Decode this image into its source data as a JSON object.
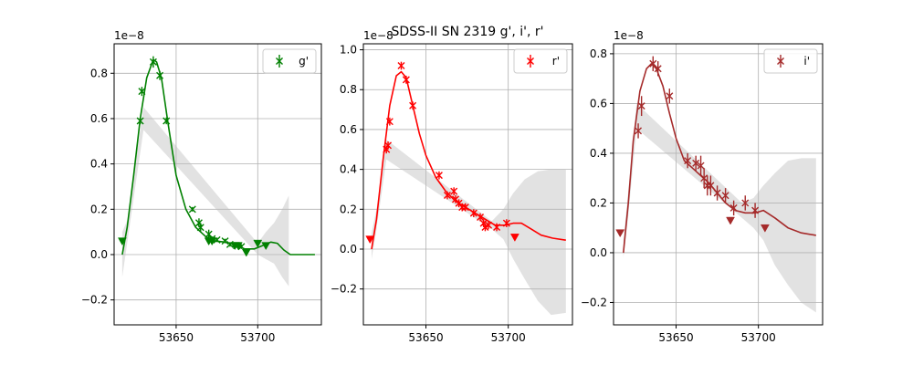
{
  "figure": {
    "title": "SDSS-II SN 2319  g', i', r'"
  },
  "chart_data": [
    {
      "type": "scatter",
      "band": "g'",
      "color": "#008000",
      "offset_label": "1e−8",
      "xlim": [
        53612,
        53739
      ],
      "ylim": [
        -0.31,
        0.93
      ],
      "xticks": [
        53650,
        53700
      ],
      "xtick_labels": [
        "53650",
        "53700"
      ],
      "yticks": [
        -0.2,
        0,
        0.2,
        0.4,
        0.6,
        0.8
      ],
      "ytick_labels": [
        "−0.2",
        "0.0",
        "0.2",
        "0.4",
        "0.6",
        "0.8"
      ],
      "grid": true,
      "legend": {
        "label": "g'",
        "position": "top-right"
      },
      "model_curve": {
        "x": [
          53617,
          53620,
          53624,
          53628,
          53632,
          53636,
          53638,
          53641,
          53645,
          53650,
          53656,
          53662,
          53668,
          53674,
          53680,
          53686,
          53692,
          53698,
          53703,
          53708,
          53712,
          53716,
          53720,
          53725,
          53730,
          53735
        ],
        "y": [
          0.0,
          0.12,
          0.35,
          0.6,
          0.78,
          0.86,
          0.85,
          0.78,
          0.58,
          0.35,
          0.2,
          0.12,
          0.08,
          0.06,
          0.055,
          0.045,
          0.025,
          0.025,
          0.04,
          0.055,
          0.05,
          0.02,
          0.0,
          0.0,
          0.0,
          0.0
        ]
      },
      "band_region": {
        "x": [
          53617,
          53620,
          53625,
          53630,
          53700,
          53705,
          53710,
          53715,
          53719
        ],
        "upper": [
          0.1,
          0.15,
          0.4,
          0.65,
          0.05,
          0.1,
          0.14,
          0.2,
          0.26
        ],
        "lower": [
          -0.1,
          0.05,
          0.3,
          0.55,
          0.0,
          -0.02,
          -0.04,
          -0.1,
          -0.14
        ]
      },
      "detections": {
        "x": [
          53628,
          53629,
          53636,
          53640,
          53644,
          53660,
          53664,
          53665,
          53670,
          53672,
          53675,
          53680,
          53683,
          53687,
          53690
        ],
        "y": [
          0.59,
          0.72,
          0.85,
          0.79,
          0.59,
          0.2,
          0.14,
          0.12,
          0.09,
          0.07,
          0.065,
          0.06,
          0.045,
          0.04,
          0.035
        ],
        "err": [
          0.015,
          0.02,
          0.025,
          0.02,
          0.015,
          0.01,
          0.02,
          0.02,
          0.02,
          0.01,
          0.01,
          0.01,
          0.01,
          0.01,
          0.01
        ]
      },
      "upper_limits": {
        "x": [
          53617,
          53670,
          53672,
          53686,
          53688,
          53693,
          53700,
          53705
        ],
        "y": [
          0.06,
          0.06,
          0.06,
          0.04,
          0.04,
          0.01,
          0.05,
          0.04
        ]
      }
    },
    {
      "type": "scatter",
      "band": "r'",
      "color": "#ff0000",
      "offset_label": "1e−8",
      "xlim": [
        53612,
        53739
      ],
      "ylim": [
        -0.38,
        1.03
      ],
      "xticks": [
        53650,
        53700
      ],
      "xtick_labels": [
        "53650",
        "53700"
      ],
      "yticks": [
        -0.2,
        0,
        0.2,
        0.4,
        0.6,
        0.8,
        1.0
      ],
      "ytick_labels": [
        "−0.2",
        "0.0",
        "0.2",
        "0.4",
        "0.6",
        "0.8",
        "1.0"
      ],
      "grid": true,
      "legend": {
        "label": "r'",
        "position": "top-right"
      },
      "model_curve": {
        "x": [
          53617,
          53620,
          53624,
          53628,
          53632,
          53635,
          53638,
          53642,
          53646,
          53650,
          53656,
          53662,
          53668,
          53674,
          53680,
          53686,
          53692,
          53698,
          53703,
          53708,
          53714,
          53720,
          53727,
          53735
        ],
        "y": [
          0.0,
          0.15,
          0.45,
          0.72,
          0.87,
          0.89,
          0.86,
          0.72,
          0.58,
          0.47,
          0.36,
          0.29,
          0.24,
          0.21,
          0.18,
          0.15,
          0.12,
          0.12,
          0.13,
          0.13,
          0.1,
          0.07,
          0.055,
          0.045
        ]
      },
      "band_region": {
        "x": [
          53617,
          53620,
          53626,
          53690,
          53697,
          53703,
          53710,
          53718,
          53726,
          53735
        ],
        "upper": [
          0.08,
          0.2,
          0.55,
          0.14,
          0.2,
          0.28,
          0.35,
          0.39,
          0.4,
          0.4
        ],
        "lower": [
          -0.05,
          0.1,
          0.45,
          0.1,
          0.05,
          -0.05,
          -0.15,
          -0.26,
          -0.33,
          -0.32
        ]
      },
      "detections": {
        "x": [
          53626,
          53627,
          53628,
          53635,
          53638,
          53642,
          53658,
          53663,
          53667,
          53668,
          53670,
          53672,
          53674,
          53679,
          53683,
          53685,
          53686,
          53688,
          53693,
          53699
        ],
        "y": [
          0.5,
          0.52,
          0.64,
          0.92,
          0.85,
          0.72,
          0.37,
          0.27,
          0.29,
          0.25,
          0.23,
          0.21,
          0.21,
          0.18,
          0.16,
          0.13,
          0.11,
          0.12,
          0.11,
          0.13
        ],
        "err": [
          0.02,
          0.02,
          0.02,
          0.02,
          0.02,
          0.02,
          0.02,
          0.02,
          0.02,
          0.02,
          0.02,
          0.02,
          0.02,
          0.02,
          0.02,
          0.02,
          0.02,
          0.02,
          0.02,
          0.02
        ]
      },
      "upper_limits": {
        "x": [
          53616,
          53704
        ],
        "y": [
          0.05,
          0.06
        ]
      }
    },
    {
      "type": "scatter",
      "band": "i'",
      "color": "#a52a2a",
      "offset_label": "1e−8",
      "xlim": [
        53612,
        53739
      ],
      "ylim": [
        -0.29,
        0.84
      ],
      "xticks": [
        53650,
        53700
      ],
      "xtick_labels": [
        "53650",
        "53700"
      ],
      "yticks": [
        -0.2,
        0,
        0.2,
        0.4,
        0.6,
        0.8
      ],
      "ytick_labels": [
        "−0.2",
        "0.0",
        "0.2",
        "0.4",
        "0.6",
        "0.8"
      ],
      "grid": true,
      "legend": {
        "label": "i'",
        "position": "top-right"
      },
      "model_curve": {
        "x": [
          53618,
          53621,
          53624,
          53628,
          53632,
          53635,
          53638,
          53642,
          53646,
          53650,
          53655,
          53660,
          53665,
          53670,
          53675,
          53680,
          53686,
          53692,
          53698,
          53703,
          53710,
          53718,
          53726,
          53735
        ],
        "y": [
          0.0,
          0.2,
          0.45,
          0.65,
          0.74,
          0.76,
          0.74,
          0.67,
          0.56,
          0.46,
          0.37,
          0.34,
          0.31,
          0.28,
          0.24,
          0.2,
          0.17,
          0.16,
          0.16,
          0.17,
          0.14,
          0.1,
          0.08,
          0.07
        ]
      },
      "band_region": {
        "x": [
          53618,
          53621,
          53626,
          53690,
          53697,
          53703,
          53710,
          53718,
          53726,
          53735
        ],
        "upper": [
          0.05,
          0.25,
          0.6,
          0.2,
          0.22,
          0.27,
          0.32,
          0.37,
          0.38,
          0.38
        ],
        "lower": [
          -0.02,
          0.15,
          0.5,
          0.14,
          0.1,
          0.05,
          -0.05,
          -0.13,
          -0.2,
          -0.24
        ]
      },
      "detections": {
        "x": [
          53627,
          53629,
          53636,
          53639,
          53646,
          53657,
          53662,
          53665,
          53667,
          53669,
          53671,
          53675,
          53680,
          53685,
          53692,
          53698
        ],
        "y": [
          0.49,
          0.59,
          0.76,
          0.74,
          0.63,
          0.37,
          0.36,
          0.35,
          0.3,
          0.27,
          0.27,
          0.24,
          0.23,
          0.18,
          0.2,
          0.17
        ],
        "err": [
          0.03,
          0.04,
          0.03,
          0.03,
          0.03,
          0.03,
          0.03,
          0.04,
          0.04,
          0.04,
          0.04,
          0.03,
          0.03,
          0.03,
          0.03,
          0.03
        ]
      },
      "upper_limits": {
        "x": [
          53616,
          53683,
          53704
        ],
        "y": [
          0.08,
          0.13,
          0.1
        ]
      }
    }
  ]
}
